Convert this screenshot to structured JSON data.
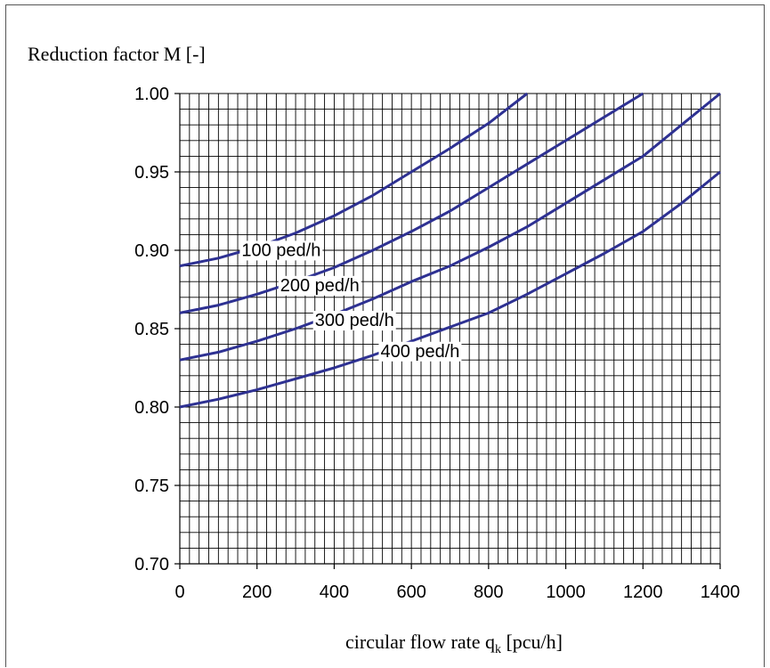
{
  "chart_data": {
    "type": "line",
    "title": "",
    "ylabel": "Reduction factor M [-]",
    "xlabel_main": "circular flow rate q",
    "xlabel_sub": "k",
    "xlabel_tail": " [pcu/h]",
    "xlim": [
      0,
      1400
    ],
    "ylim": [
      0.7,
      1.0
    ],
    "grid": true,
    "x_ticks": [
      "0",
      "200",
      "400",
      "600",
      "800",
      "1000",
      "1200",
      "1400"
    ],
    "y_ticks": [
      "0.70",
      "0.75",
      "0.80",
      "0.85",
      "0.90",
      "0.95",
      "1.00"
    ],
    "line_color": "#2E3192",
    "series": [
      {
        "name": "100 ped/h",
        "label_x": 160,
        "points": [
          [
            0,
            0.89
          ],
          [
            100,
            0.895
          ],
          [
            200,
            0.902
          ],
          [
            300,
            0.911
          ],
          [
            400,
            0.922
          ],
          [
            500,
            0.935
          ],
          [
            600,
            0.95
          ],
          [
            700,
            0.965
          ],
          [
            800,
            0.981
          ],
          [
            900,
            1.0
          ]
        ]
      },
      {
        "name": "200 ped/h",
        "label_x": 260,
        "points": [
          [
            0,
            0.86
          ],
          [
            100,
            0.865
          ],
          [
            200,
            0.872
          ],
          [
            300,
            0.88
          ],
          [
            400,
            0.889
          ],
          [
            500,
            0.9
          ],
          [
            600,
            0.912
          ],
          [
            700,
            0.925
          ],
          [
            800,
            0.94
          ],
          [
            900,
            0.955
          ],
          [
            1000,
            0.97
          ],
          [
            1100,
            0.985
          ],
          [
            1200,
            1.0
          ]
        ]
      },
      {
        "name": "300 ped/h",
        "label_x": 350,
        "points": [
          [
            0,
            0.83
          ],
          [
            100,
            0.835
          ],
          [
            200,
            0.842
          ],
          [
            300,
            0.85
          ],
          [
            400,
            0.859
          ],
          [
            500,
            0.869
          ],
          [
            600,
            0.88
          ],
          [
            700,
            0.89
          ],
          [
            800,
            0.902
          ],
          [
            900,
            0.915
          ],
          [
            1000,
            0.93
          ],
          [
            1100,
            0.945
          ],
          [
            1200,
            0.96
          ],
          [
            1300,
            0.98
          ],
          [
            1400,
            1.0
          ]
        ]
      },
      {
        "name": "400 ped/h",
        "label_x": 520,
        "points": [
          [
            0,
            0.8
          ],
          [
            100,
            0.805
          ],
          [
            200,
            0.811
          ],
          [
            300,
            0.818
          ],
          [
            400,
            0.825
          ],
          [
            500,
            0.833
          ],
          [
            600,
            0.842
          ],
          [
            700,
            0.851
          ],
          [
            800,
            0.86
          ],
          [
            900,
            0.872
          ],
          [
            1000,
            0.885
          ],
          [
            1100,
            0.898
          ],
          [
            1200,
            0.912
          ],
          [
            1300,
            0.93
          ],
          [
            1400,
            0.95
          ]
        ]
      }
    ]
  }
}
